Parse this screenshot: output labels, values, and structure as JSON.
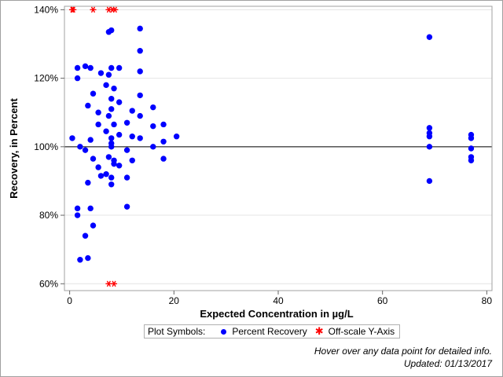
{
  "chart_data": {
    "type": "scatter",
    "title": "",
    "xlabel": "Expected Concentration in µg/L",
    "ylabel": "Recovery, in Percent",
    "xlim": [
      -1,
      81
    ],
    "ylim": [
      58,
      141
    ],
    "x_ticks": [
      0,
      20,
      40,
      60,
      80
    ],
    "x_tick_labels": [
      "0",
      "20",
      "40",
      "60",
      "80"
    ],
    "y_ticks": [
      60,
      80,
      100,
      120,
      140
    ],
    "y_tick_labels": [
      "60%",
      "80%",
      "100%",
      "120%",
      "140%"
    ],
    "reference_line": 100,
    "grid": "horizontal",
    "legend_position": "bottom",
    "colors": {
      "recovery": "#0000ff",
      "offscale": "#ff0000"
    },
    "series": [
      {
        "name": "Percent Recovery",
        "marker": "circle",
        "points": [
          [
            0.5,
            102.5
          ],
          [
            1.5,
            123
          ],
          [
            1.5,
            120
          ],
          [
            1.5,
            82
          ],
          [
            1.5,
            80
          ],
          [
            2,
            100
          ],
          [
            2,
            67
          ],
          [
            3,
            123.5
          ],
          [
            3,
            99
          ],
          [
            3,
            74
          ],
          [
            3.5,
            112
          ],
          [
            3.5,
            89.5
          ],
          [
            3.5,
            67.5
          ],
          [
            4,
            123
          ],
          [
            4,
            102
          ],
          [
            4,
            82
          ],
          [
            4.5,
            115.5
          ],
          [
            4.5,
            96.5
          ],
          [
            4.5,
            77
          ],
          [
            5.5,
            110
          ],
          [
            5.5,
            106.5
          ],
          [
            5.5,
            94
          ],
          [
            6,
            121.5
          ],
          [
            6,
            91.5
          ],
          [
            7,
            118
          ],
          [
            7,
            104.5
          ],
          [
            7,
            92
          ],
          [
            7.5,
            133.5
          ],
          [
            7.5,
            121
          ],
          [
            7.5,
            109
          ],
          [
            7.5,
            97
          ],
          [
            8,
            134
          ],
          [
            8,
            123
          ],
          [
            8,
            114
          ],
          [
            8,
            111
          ],
          [
            8,
            102.5
          ],
          [
            8,
            101
          ],
          [
            8,
            100
          ],
          [
            8,
            91
          ],
          [
            8,
            89
          ],
          [
            8.5,
            117
          ],
          [
            8.5,
            106.5
          ],
          [
            8.5,
            96
          ],
          [
            8.5,
            95
          ],
          [
            9.5,
            123
          ],
          [
            9.5,
            113
          ],
          [
            9.5,
            103.5
          ],
          [
            9.5,
            94.5
          ],
          [
            11,
            107
          ],
          [
            11,
            99
          ],
          [
            11,
            91
          ],
          [
            11,
            82.5
          ],
          [
            12,
            110.5
          ],
          [
            12,
            103
          ],
          [
            12,
            96
          ],
          [
            13.5,
            134.5
          ],
          [
            13.5,
            128
          ],
          [
            13.5,
            122
          ],
          [
            13.5,
            115
          ],
          [
            13.5,
            109
          ],
          [
            13.5,
            102.5
          ],
          [
            16,
            111.5
          ],
          [
            16,
            106
          ],
          [
            16,
            100
          ],
          [
            18,
            106.5
          ],
          [
            18,
            101.5
          ],
          [
            18,
            96.5
          ],
          [
            20.5,
            103
          ],
          [
            69,
            132
          ],
          [
            69,
            105.5
          ],
          [
            69,
            104
          ],
          [
            69,
            103
          ],
          [
            69,
            100
          ],
          [
            69,
            90
          ],
          [
            77,
            103.5
          ],
          [
            77,
            102.5
          ],
          [
            77,
            99.5
          ],
          [
            77,
            97
          ],
          [
            77,
            96
          ]
        ]
      },
      {
        "name": "Off-scale Y-Axis",
        "marker": "star",
        "points": [
          [
            0.5,
            140
          ],
          [
            0.7,
            140
          ],
          [
            4.5,
            140
          ],
          [
            7.5,
            140
          ],
          [
            8.2,
            140
          ],
          [
            8.7,
            140
          ],
          [
            7.5,
            60
          ],
          [
            8.5,
            60
          ]
        ]
      }
    ]
  },
  "legend": {
    "title": "Plot Symbols:",
    "items": [
      {
        "label": "Percent Recovery",
        "symbol": "circle"
      },
      {
        "label": "Off-scale Y-Axis",
        "symbol": "star"
      }
    ]
  },
  "footnotes": {
    "hover": "Hover over any data point for detailed info.",
    "updated": "Updated: 01/13/2017"
  }
}
